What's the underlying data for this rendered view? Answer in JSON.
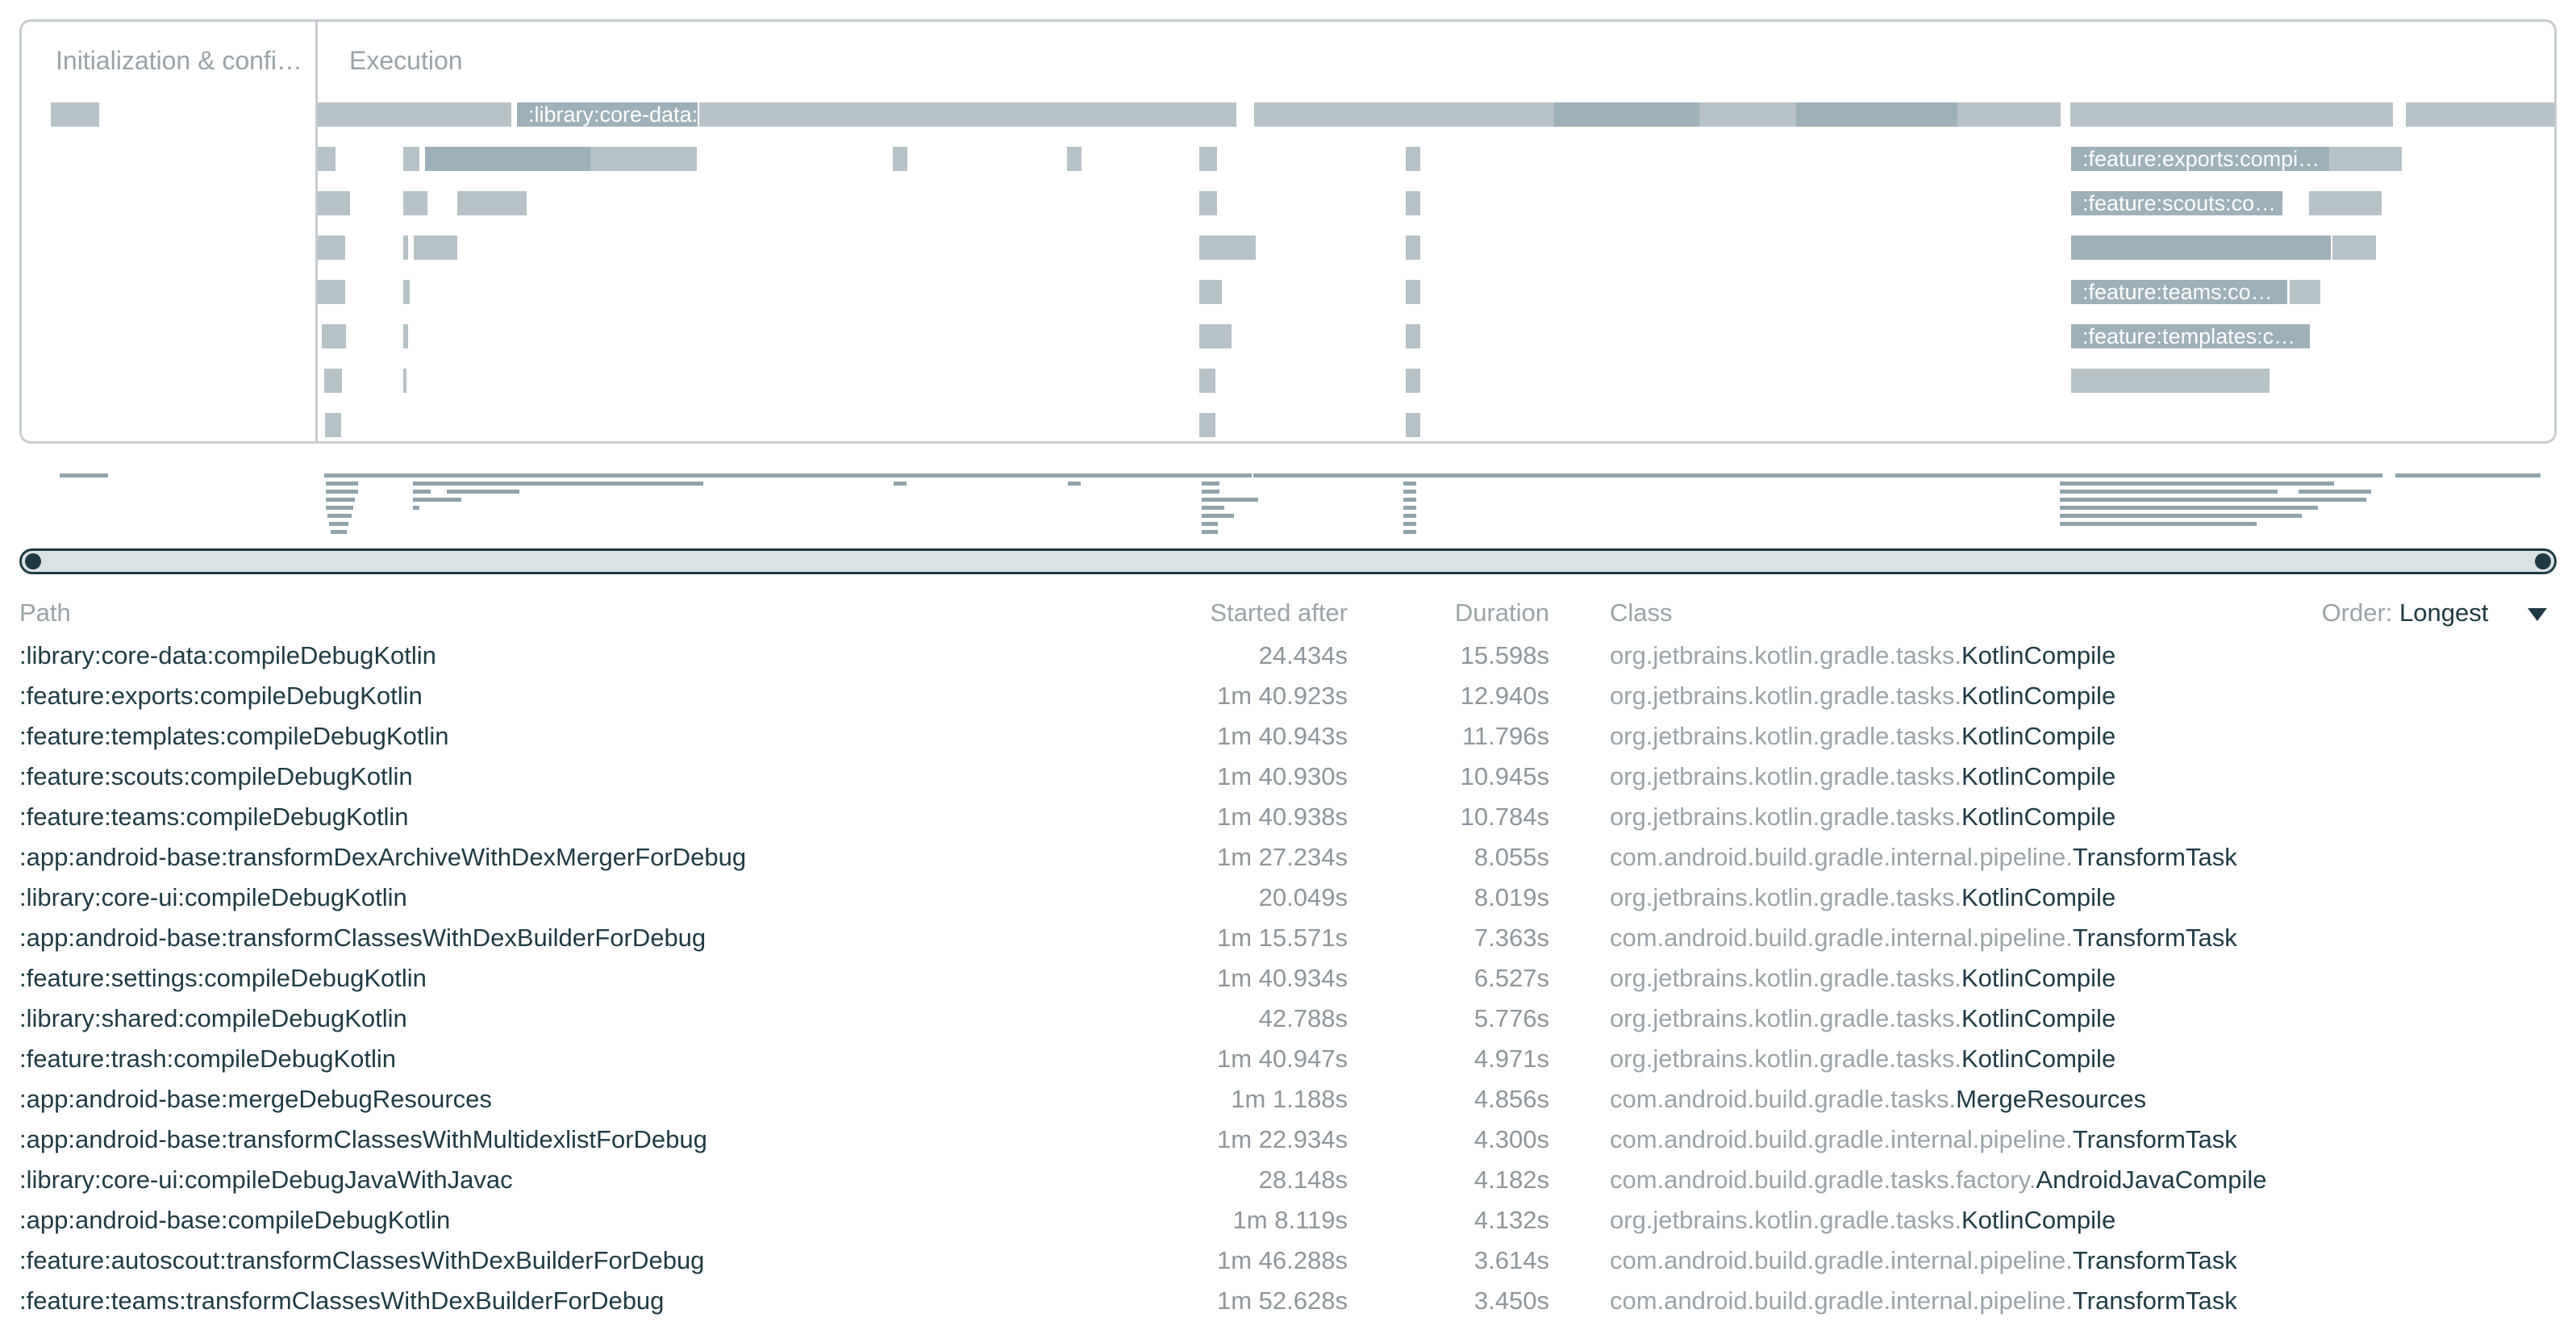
{
  "timeline": {
    "phases": [
      {
        "label": "Initialization & confi…"
      },
      {
        "label": "Execution"
      }
    ],
    "bar_labels": [
      ":library:core-data:compileDe…",
      ":feature:exports:compi…",
      ":feature:scouts:co…",
      ":feature:teams:co…",
      ":feature:templates:c…"
    ]
  },
  "table": {
    "headers": {
      "path": "Path",
      "started_after": "Started after",
      "duration": "Duration",
      "class": "Class"
    },
    "order": {
      "label": "Order:",
      "value": "Longest"
    },
    "rows": [
      {
        "path": ":library:core-data:compileDebugKotlin",
        "started": "24.434s",
        "duration": "15.598s",
        "pkg": "org.jetbrains.kotlin.gradle.tasks.",
        "cls": "KotlinCompile"
      },
      {
        "path": ":feature:exports:compileDebugKotlin",
        "started": "1m 40.923s",
        "duration": "12.940s",
        "pkg": "org.jetbrains.kotlin.gradle.tasks.",
        "cls": "KotlinCompile"
      },
      {
        "path": ":feature:templates:compileDebugKotlin",
        "started": "1m 40.943s",
        "duration": "11.796s",
        "pkg": "org.jetbrains.kotlin.gradle.tasks.",
        "cls": "KotlinCompile"
      },
      {
        "path": ":feature:scouts:compileDebugKotlin",
        "started": "1m 40.930s",
        "duration": "10.945s",
        "pkg": "org.jetbrains.kotlin.gradle.tasks.",
        "cls": "KotlinCompile"
      },
      {
        "path": ":feature:teams:compileDebugKotlin",
        "started": "1m 40.938s",
        "duration": "10.784s",
        "pkg": "org.jetbrains.kotlin.gradle.tasks.",
        "cls": "KotlinCompile"
      },
      {
        "path": ":app:android-base:transformDexArchiveWithDexMergerForDebug",
        "started": "1m 27.234s",
        "duration": "8.055s",
        "pkg": "com.android.build.gradle.internal.pipeline.",
        "cls": "TransformTask"
      },
      {
        "path": ":library:core-ui:compileDebugKotlin",
        "started": "20.049s",
        "duration": "8.019s",
        "pkg": "org.jetbrains.kotlin.gradle.tasks.",
        "cls": "KotlinCompile"
      },
      {
        "path": ":app:android-base:transformClassesWithDexBuilderForDebug",
        "started": "1m 15.571s",
        "duration": "7.363s",
        "pkg": "com.android.build.gradle.internal.pipeline.",
        "cls": "TransformTask"
      },
      {
        "path": ":feature:settings:compileDebugKotlin",
        "started": "1m 40.934s",
        "duration": "6.527s",
        "pkg": "org.jetbrains.kotlin.gradle.tasks.",
        "cls": "KotlinCompile"
      },
      {
        "path": ":library:shared:compileDebugKotlin",
        "started": "42.788s",
        "duration": "5.776s",
        "pkg": "org.jetbrains.kotlin.gradle.tasks.",
        "cls": "KotlinCompile"
      },
      {
        "path": ":feature:trash:compileDebugKotlin",
        "started": "1m 40.947s",
        "duration": "4.971s",
        "pkg": "org.jetbrains.kotlin.gradle.tasks.",
        "cls": "KotlinCompile"
      },
      {
        "path": ":app:android-base:mergeDebugResources",
        "started": "1m 1.188s",
        "duration": "4.856s",
        "pkg": "com.android.build.gradle.tasks.",
        "cls": "MergeResources"
      },
      {
        "path": ":app:android-base:transformClassesWithMultidexlistForDebug",
        "started": "1m 22.934s",
        "duration": "4.300s",
        "pkg": "com.android.build.gradle.internal.pipeline.",
        "cls": "TransformTask"
      },
      {
        "path": ":library:core-ui:compileDebugJavaWithJavac",
        "started": "28.148s",
        "duration": "4.182s",
        "pkg": "com.android.build.gradle.tasks.factory.",
        "cls": "AndroidJavaCompile"
      },
      {
        "path": ":app:android-base:compileDebugKotlin",
        "started": "1m 8.119s",
        "duration": "4.132s",
        "pkg": "org.jetbrains.kotlin.gradle.tasks.",
        "cls": "KotlinCompile"
      },
      {
        "path": ":feature:autoscout:transformClassesWithDexBuilderForDebug",
        "started": "1m 46.288s",
        "duration": "3.614s",
        "pkg": "com.android.build.gradle.internal.pipeline.",
        "cls": "TransformTask"
      },
      {
        "path": ":feature:teams:transformClassesWithDexBuilderForDebug",
        "started": "1m 52.628s",
        "duration": "3.450s",
        "pkg": "com.android.build.gradle.internal.pipeline.",
        "cls": "TransformTask"
      }
    ]
  }
}
